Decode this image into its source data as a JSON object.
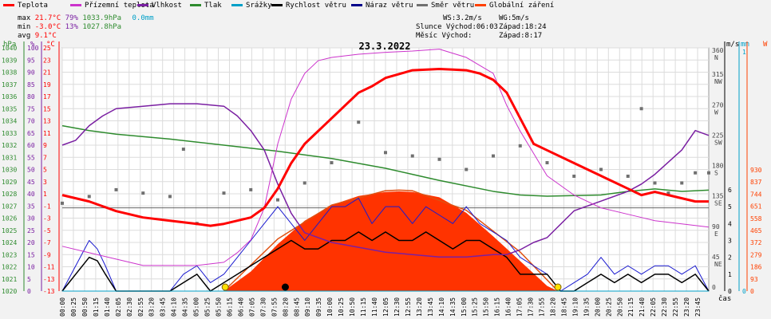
{
  "title": "23.3.2022",
  "legend": [
    {
      "label": "Teplota",
      "color": "#ff0000"
    },
    {
      "label": "Přízemní teplota",
      "color": "#cc33cc"
    },
    {
      "label": "Vlhkost",
      "color": "#7a1fa2"
    },
    {
      "label": "Tlak",
      "color": "#2e8b2e"
    },
    {
      "label": "Srážky",
      "color": "#00a0c8"
    },
    {
      "label": "Rychlost větru",
      "color": "#000000"
    },
    {
      "label": "Náraz větru",
      "color": "#00008b"
    },
    {
      "label": "Směr větru",
      "color": "#707070"
    },
    {
      "label": "Globální záření",
      "color": "#ff4000"
    }
  ],
  "stats": {
    "max_label": "max",
    "max_temp": "21.7°C",
    "max_hum": "79%",
    "max_press": "1033.9hPa",
    "max_rain": "0.0mm",
    "min_label": "min",
    "min_temp": "-3.0°C",
    "min_hum": "13%",
    "min_press": "1027.8hPa",
    "avg_label": "avg",
    "avg_temp": "9.1°C"
  },
  "info": {
    "ws": "WS:3.2m/s",
    "wg": "WG:5m/s",
    "sun_rise": "Slunce Východ:06:03",
    "sun_set": "Západ:18:24",
    "moon_rise": "Měsíc  Východ:",
    "moon_set": "Západ:8:17"
  },
  "axis_units": {
    "hpa": "hPa",
    "pct": "%",
    "degc": "°C",
    "ms": "m/s",
    "mm": "mm",
    "w": "W",
    "time": "čas"
  },
  "axes": {
    "hpa": [
      1040,
      1039,
      1038,
      1037,
      1036,
      1035,
      1034,
      1033,
      1032,
      1031,
      1030,
      1029,
      1028,
      1027,
      1026,
      1025,
      1024,
      1023,
      1022,
      1021,
      1020
    ],
    "pct": [
      100,
      95,
      90,
      85,
      80,
      75,
      70,
      65,
      60,
      55,
      50,
      45,
      40,
      35,
      30,
      25,
      20,
      15,
      10,
      5,
      0
    ],
    "degc": [
      25,
      23,
      21,
      19,
      17,
      15,
      13,
      11,
      9,
      7,
      5,
      3,
      1,
      -1,
      -3,
      -5,
      -7,
      -9,
      -11,
      -13
    ],
    "degc_axis_labels": [
      25,
      23,
      21,
      19,
      17,
      15,
      13,
      11,
      9,
      7,
      5,
      3,
      1,
      -1,
      -3,
      -5,
      -7,
      -9,
      -11,
      -13,
      -13
    ],
    "dir_labels": [
      "360\nN",
      "315\nNW",
      "270\nW",
      "225\nSW",
      "180\nS",
      "135\nSE",
      "90\nE",
      "45\nNE",
      "0"
    ],
    "ms": [
      6,
      5,
      4,
      3,
      2,
      1,
      0
    ],
    "mm_top": "1",
    "mm_zero": "0",
    "w": [
      930,
      837,
      744,
      651,
      558,
      465,
      372,
      279,
      186,
      93,
      0
    ]
  },
  "chart_data": {
    "type": "line",
    "title": "23.3.2022",
    "x_labels": [
      "00:00",
      "00:25",
      "00:50",
      "01:15",
      "01:40",
      "02:05",
      "02:30",
      "02:55",
      "03:20",
      "03:45",
      "04:10",
      "04:35",
      "05:00",
      "05:25",
      "05:50",
      "06:15",
      "06:40",
      "07:05",
      "07:30",
      "07:55",
      "08:20",
      "08:45",
      "09:10",
      "09:35",
      "10:00",
      "10:25",
      "10:50",
      "11:15",
      "11:40",
      "12:05",
      "12:30",
      "12:55",
      "13:20",
      "13:45",
      "14:10",
      "14:35",
      "15:00",
      "15:25",
      "15:50",
      "16:15",
      "16:40",
      "17:05",
      "17:30",
      "17:55",
      "18:20",
      "18:45",
      "19:10",
      "19:35",
      "20:00",
      "20:25",
      "20:50",
      "21:15",
      "21:40",
      "22:05",
      "22:30",
      "22:55",
      "23:20",
      "23:45"
    ],
    "series": [
      {
        "name": "Teplota",
        "unit": "°C",
        "color": "#ff0000",
        "hours": [
          0,
          0.5,
          1,
          2,
          3,
          4,
          5,
          5.5,
          6,
          6.5,
          7,
          7.5,
          8,
          8.5,
          9,
          10,
          11,
          11.5,
          12,
          13,
          14,
          14.5,
          15,
          15.5,
          16,
          16.5,
          17,
          17.5,
          18,
          19,
          20,
          21,
          21.5,
          22,
          22.5,
          23,
          23.5,
          24
        ],
        "values": [
          2,
          1.5,
          1,
          -0.5,
          -1.5,
          -2,
          -2.5,
          -2.8,
          -2.5,
          -2,
          -1.5,
          0,
          3,
          7,
          10,
          14,
          18,
          19,
          20.3,
          21.5,
          21.7,
          21.6,
          21.5,
          21,
          20,
          18,
          14,
          10,
          9,
          7,
          5,
          3,
          2,
          2.5,
          2,
          1.5,
          1,
          1
        ]
      },
      {
        "name": "Přízemní teplota",
        "unit": "°C",
        "color": "#cc33cc",
        "hours": [
          0,
          1,
          2,
          3,
          4,
          5,
          6,
          6.5,
          7,
          7.5,
          8,
          8.5,
          9,
          9.5,
          10,
          11,
          12,
          13,
          14,
          15,
          16,
          16.5,
          17,
          18,
          19,
          20,
          21,
          21.5,
          22,
          23,
          24
        ],
        "values": [
          -6,
          -7,
          -8,
          -9,
          -9,
          -9,
          -8.5,
          -7,
          -5,
          0,
          10,
          17,
          21,
          23,
          23.5,
          24,
          24.3,
          24.5,
          24.8,
          23.5,
          21,
          16,
          12,
          5,
          2,
          0,
          -1,
          -1.5,
          -2,
          -2.5,
          -3
        ]
      },
      {
        "name": "Vlhkost",
        "unit": "%",
        "color": "#7a1fa2",
        "hours": [
          0,
          0.5,
          1,
          1.5,
          2,
          3,
          4,
          5,
          6,
          6.5,
          7,
          7.5,
          8,
          8.5,
          9,
          10,
          11,
          12,
          13,
          14,
          15,
          16,
          16.5,
          17,
          17.5,
          18,
          19,
          20,
          21,
          21.5,
          22,
          23,
          23.5,
          24
        ],
        "values": [
          60,
          62,
          68,
          72,
          75,
          76,
          77,
          77,
          76,
          72,
          66,
          58,
          44,
          32,
          24,
          20,
          18,
          16,
          15,
          14,
          14,
          15,
          15,
          17,
          20,
          22,
          33,
          37,
          41,
          44,
          48,
          58,
          66,
          64
        ]
      },
      {
        "name": "Tlak",
        "unit": "hPa",
        "color": "#2e8b2e",
        "hours": [
          0,
          1,
          2,
          4,
          6,
          8,
          10,
          12,
          13,
          14,
          16,
          17,
          18,
          20,
          21,
          22,
          23,
          24
        ],
        "values": [
          1033.6,
          1033.2,
          1032.9,
          1032.5,
          1032,
          1031.5,
          1030.9,
          1030.1,
          1029.6,
          1029.1,
          1028.2,
          1027.9,
          1027.8,
          1027.9,
          1028.2,
          1028.4,
          1028.2,
          1028.3
        ]
      },
      {
        "name": "Srážky",
        "unit": "mm",
        "color": "#00a0c8",
        "hours": [
          0,
          24
        ],
        "values": [
          0,
          0
        ]
      },
      {
        "name": "Rychlost větru",
        "unit": "m/s",
        "color": "#000000",
        "hours": [
          0,
          0.5,
          1,
          1.3,
          1.6,
          2,
          3,
          4,
          4.5,
          5,
          5.5,
          6,
          6.5,
          7,
          7.5,
          8,
          8.5,
          9,
          9.5,
          10,
          10.5,
          11,
          11.5,
          12,
          12.5,
          13,
          13.5,
          14,
          14.5,
          15,
          15.5,
          16,
          16.5,
          17,
          17.5,
          18,
          18.5,
          19,
          19.5,
          20,
          20.5,
          21,
          21.5,
          22,
          22.5,
          23,
          23.5,
          24
        ],
        "values": [
          0,
          1,
          2,
          1.8,
          1,
          0,
          0,
          0,
          0.5,
          1,
          0,
          0.5,
          1,
          1.5,
          2,
          2.5,
          3,
          2.5,
          2.5,
          3,
          3,
          3.5,
          3,
          3.5,
          3,
          3,
          3.5,
          3,
          2.5,
          3,
          3,
          2.5,
          2,
          1,
          1,
          1,
          0,
          0,
          0.5,
          1,
          0.5,
          1,
          0.5,
          1,
          1,
          0.5,
          1,
          0
        ]
      },
      {
        "name": "Náraz větru",
        "unit": "m/s",
        "color": "#00008b",
        "hours": [
          0,
          0.5,
          1,
          1.3,
          1.6,
          2,
          3,
          4,
          4.5,
          5,
          5.5,
          6,
          6.5,
          7,
          7.5,
          8,
          8.5,
          9,
          9.5,
          10,
          10.5,
          11,
          11.5,
          12,
          12.5,
          13,
          13.5,
          14,
          14.5,
          15,
          15.5,
          16,
          16.5,
          17,
          17.5,
          18,
          18.5,
          19,
          19.5,
          20,
          20.5,
          21,
          21.5,
          22,
          22.5,
          23,
          23.5,
          24
        ],
        "values": [
          0,
          1.5,
          3,
          2.5,
          1.5,
          0,
          0,
          0,
          1,
          1.5,
          0.5,
          1,
          2,
          3,
          4,
          5,
          4,
          3,
          4,
          5,
          5,
          5.5,
          4,
          5,
          5,
          4,
          5,
          4.5,
          4,
          5,
          4,
          3.5,
          3,
          2,
          1.5,
          1,
          0,
          0.5,
          1,
          2,
          1,
          1.5,
          1,
          1.5,
          1.5,
          1,
          1.5,
          0
        ]
      },
      {
        "name": "Směr větru",
        "unit": "°",
        "color": "#707070",
        "hours": [
          0,
          1,
          2,
          3,
          4,
          4.5,
          5,
          6,
          7,
          8,
          9,
          10,
          11,
          12,
          13,
          14,
          15,
          16,
          17,
          18,
          19,
          20,
          21,
          21.5,
          22,
          22.5,
          23,
          23.5,
          24
        ],
        "values": [
          130,
          140,
          150,
          145,
          140,
          210,
          100,
          145,
          150,
          135,
          160,
          190,
          250,
          205,
          200,
          195,
          180,
          200,
          215,
          190,
          170,
          180,
          170,
          270,
          160,
          145,
          160,
          175,
          175
        ]
      },
      {
        "name": "Globální záření",
        "unit": "W",
        "color": "#ff4000",
        "hours": [
          6,
          7,
          8,
          9,
          10,
          11,
          12,
          12.5,
          13,
          14,
          15,
          16,
          17,
          18,
          18.4
        ],
        "values": [
          0,
          150,
          360,
          540,
          660,
          730,
          760,
          765,
          760,
          720,
          600,
          420,
          230,
          40,
          0
        ]
      }
    ],
    "clear_sky_radiation": {
      "hours": [
        6,
        8,
        10,
        12,
        12.5,
        13,
        15,
        17,
        18.4
      ],
      "values": [
        0,
        400,
        660,
        770,
        775,
        770,
        620,
        300,
        0
      ]
    },
    "sunrise": "06:03",
    "sunset": "18:24"
  }
}
